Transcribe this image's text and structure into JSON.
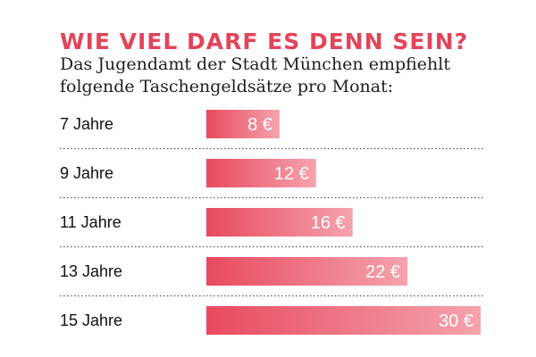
{
  "header": {
    "title": "WIE VIEL DARF ES DENN SEIN?",
    "subtitle": "Das Jugendamt der Stadt München empfiehlt folgende Taschengeldsätze pro Monat:"
  },
  "colors": {
    "title": "#e2445a",
    "bar_dark": "#e84a5f",
    "bar_light": "#f5a3ad",
    "divider": "#555555"
  },
  "chart_data": {
    "type": "bar",
    "orientation": "horizontal",
    "title": "WIE VIEL DARF ES DENN SEIN?",
    "subtitle": "Das Jugendamt der Stadt München empfiehlt folgende Taschengeldsätze pro Monat:",
    "categories": [
      "7 Jahre",
      "9 Jahre",
      "11 Jahre",
      "13 Jahre",
      "15 Jahre"
    ],
    "values": [
      8,
      12,
      16,
      22,
      30
    ],
    "value_labels": [
      "8 €",
      "12 €",
      "16 €",
      "22 €",
      "30 €"
    ],
    "unit": "€",
    "xlim": [
      0,
      30
    ],
    "grid": false,
    "dividers": "dotted"
  }
}
